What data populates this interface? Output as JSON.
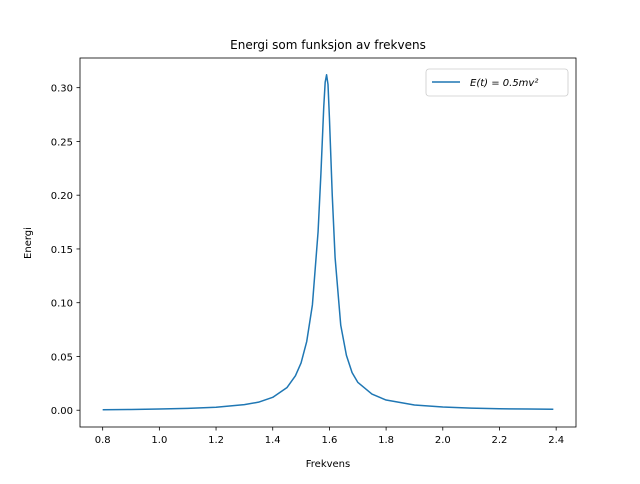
{
  "chart_data": {
    "type": "line",
    "title": "Energi som funksjon av frekvens",
    "xlabel": "Frekvens",
    "ylabel": "Energi",
    "xlim": [
      0.72,
      2.47
    ],
    "ylim": [
      -0.0156,
      0.3276
    ],
    "xticks": [
      0.8,
      1.0,
      1.2,
      1.4,
      1.6,
      1.8,
      2.0,
      2.2,
      2.4
    ],
    "xtick_labels": [
      "0.8",
      "1.0",
      "1.2",
      "1.4",
      "1.6",
      "1.8",
      "2.0",
      "2.2",
      "2.4"
    ],
    "yticks": [
      0.0,
      0.05,
      0.1,
      0.15,
      0.2,
      0.25,
      0.3
    ],
    "ytick_labels": [
      "0.00",
      "0.05",
      "0.10",
      "0.15",
      "0.20",
      "0.25",
      "0.30"
    ],
    "grid": false,
    "legend_position": "upper right",
    "series": [
      {
        "name": "E(t) = 0.5mv²",
        "color": "#1f77b4",
        "x": [
          0.8,
          0.9,
          1.0,
          1.1,
          1.2,
          1.3,
          1.35,
          1.4,
          1.45,
          1.48,
          1.5,
          1.52,
          1.54,
          1.56,
          1.57,
          1.58,
          1.585,
          1.59,
          1.595,
          1.6,
          1.61,
          1.62,
          1.64,
          1.66,
          1.68,
          1.7,
          1.75,
          1.8,
          1.9,
          2.0,
          2.1,
          2.2,
          2.3,
          2.39
        ],
        "y": [
          0.0005,
          0.0007,
          0.0011,
          0.0017,
          0.0028,
          0.0052,
          0.0075,
          0.012,
          0.021,
          0.032,
          0.044,
          0.064,
          0.098,
          0.166,
          0.22,
          0.282,
          0.305,
          0.312,
          0.303,
          0.272,
          0.2,
          0.142,
          0.079,
          0.051,
          0.035,
          0.026,
          0.015,
          0.0095,
          0.0049,
          0.003,
          0.002,
          0.0014,
          0.0011,
          0.0009
        ]
      }
    ]
  }
}
